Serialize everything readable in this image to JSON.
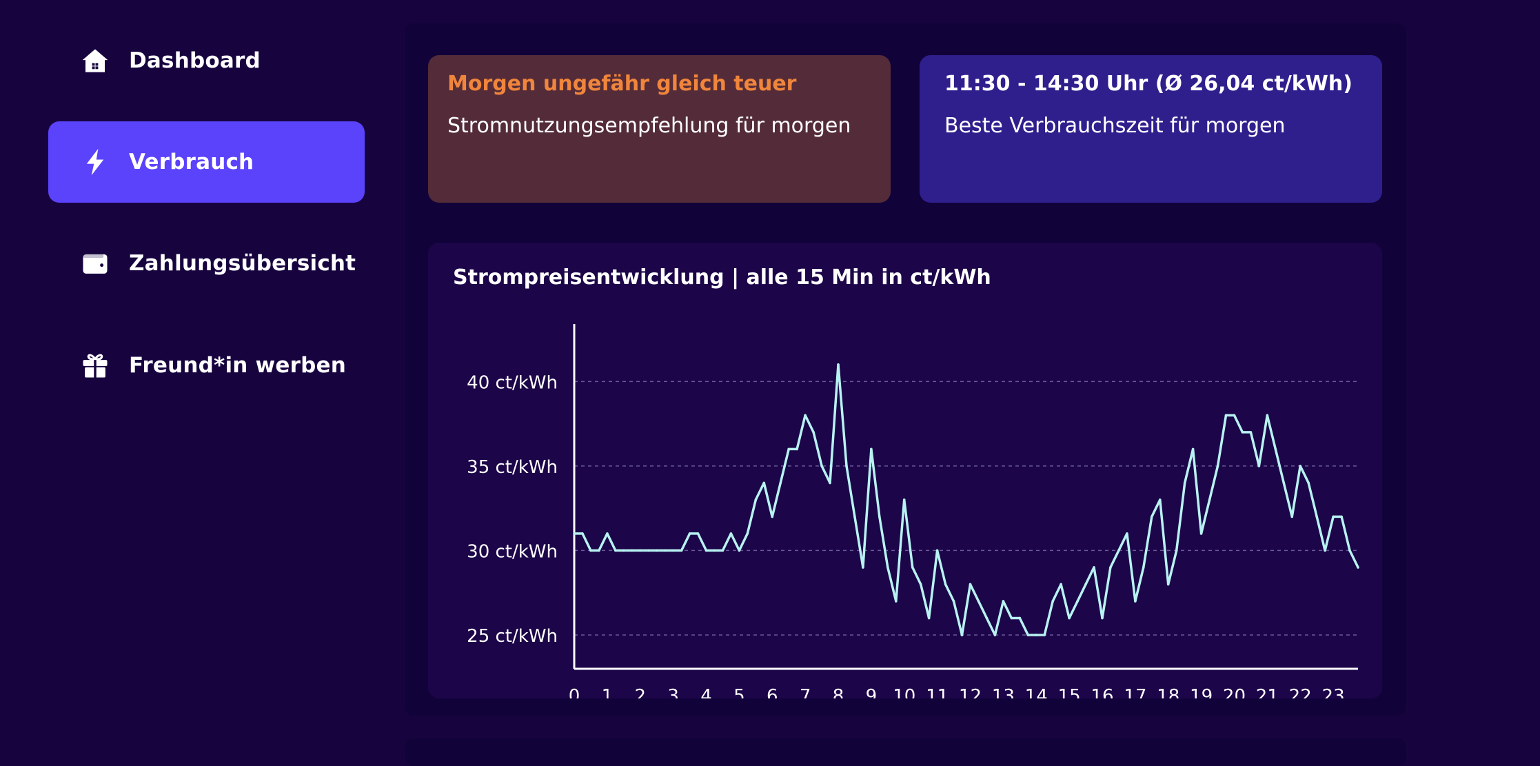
{
  "sidebar": {
    "items": [
      {
        "label": "Dashboard",
        "icon": "home-icon",
        "active": false
      },
      {
        "label": "Verbrauch",
        "icon": "lightning-icon",
        "active": true
      },
      {
        "label": "Zahlungsübersicht",
        "icon": "wallet-icon",
        "active": false
      },
      {
        "label": "Freund*in werben",
        "icon": "gift-icon",
        "active": false
      }
    ]
  },
  "cards": {
    "warning": {
      "title": "Morgen ungefähr gleich teuer",
      "text": "Stromnutzungsempfehlung für morgen"
    },
    "best_time": {
      "title": "11:30 - 14:30 Uhr (Ø 26,04 ct/kWh)",
      "text": "Beste Verbrauchszeit für morgen"
    }
  },
  "colors": {
    "background": "#17043f",
    "accent": "#5b42fb",
    "warning_card": "#542b38",
    "warning_text": "#f0853c",
    "best_card": "#2f1f8d",
    "line": "#b8f2f2"
  },
  "chart_data": {
    "type": "line",
    "title": "Strompreisentwicklung | alle 15 Min in ct/kWh",
    "x_ticks": [
      "0",
      "1",
      "2",
      "3",
      "4",
      "5",
      "6",
      "7",
      "8",
      "9",
      "10",
      "11",
      "12",
      "13",
      "14",
      "15",
      "16",
      "17",
      "18",
      "19",
      "20",
      "21",
      "22",
      "23"
    ],
    "y_ticks": [
      {
        "value": 25,
        "label": "25 ct/kWh"
      },
      {
        "value": 30,
        "label": "30 ct/kWh"
      },
      {
        "value": 35,
        "label": "35 ct/kWh"
      },
      {
        "value": 40,
        "label": "40 ct/kWh"
      }
    ],
    "xlim": [
      0,
      23.75
    ],
    "ylim": [
      23,
      43.4
    ],
    "grid": true,
    "series": [
      {
        "x": [
          0,
          0.25,
          0.5,
          0.75,
          1,
          1.25,
          1.5,
          1.75,
          2,
          2.25,
          2.5,
          2.75,
          3,
          3.25,
          3.5,
          3.75,
          4,
          4.25,
          4.5,
          4.75,
          5,
          5.25,
          5.5,
          5.75,
          6,
          6.25,
          6.5,
          6.75,
          7,
          7.25,
          7.5,
          7.75,
          8,
          8.25,
          8.5,
          8.75,
          9,
          9.25,
          9.5,
          9.75,
          10,
          10.25,
          10.5,
          10.75,
          11,
          11.25,
          11.5,
          11.75,
          12,
          12.25,
          12.5,
          12.75,
          13,
          13.25,
          13.5,
          13.75,
          14,
          14.25,
          14.5,
          14.75,
          15,
          15.25,
          15.5,
          15.75,
          16,
          16.25,
          16.5,
          16.75,
          17,
          17.25,
          17.5,
          17.75,
          18,
          18.25,
          18.5,
          18.75,
          19,
          19.25,
          19.5,
          19.75,
          20,
          20.25,
          20.5,
          20.75,
          21,
          21.25,
          21.5,
          21.75,
          22,
          22.25,
          22.5,
          22.75,
          23,
          23.25,
          23.5,
          23.75
        ],
        "y": [
          31,
          31,
          30,
          30,
          31,
          30,
          30,
          30,
          30,
          30,
          30,
          30,
          30,
          30,
          31,
          31,
          30,
          30,
          30,
          31,
          30,
          31,
          33,
          34,
          32,
          34,
          36,
          36,
          38,
          37,
          35,
          34,
          41,
          35,
          32,
          29,
          36,
          32,
          29,
          27,
          33,
          29,
          28,
          26,
          30,
          28,
          27,
          25,
          28,
          27,
          26,
          25,
          27,
          26,
          26,
          25,
          25,
          25,
          27,
          28,
          26,
          27,
          28,
          29,
          26,
          29,
          30,
          31,
          27,
          29,
          32,
          33,
          28,
          30,
          34,
          36,
          31,
          33,
          35,
          38,
          38,
          37,
          37,
          35,
          38,
          36,
          34,
          32,
          35,
          34,
          32,
          30,
          32,
          32,
          30,
          29
        ]
      }
    ]
  }
}
